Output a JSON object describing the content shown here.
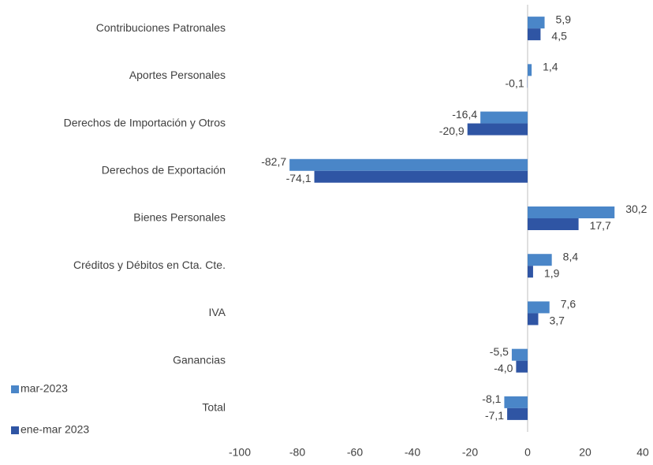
{
  "chart_data": {
    "type": "hbar",
    "categories": [
      "Contribuciones Patronales",
      "Aportes Personales",
      "Derechos de Importación y Otros",
      "Derechos de Exportación",
      "Bienes Personales",
      "Créditos y Débitos en Cta. Cte.",
      "IVA",
      "Ganancias",
      "Total"
    ],
    "series": [
      {
        "name": "mar-2023",
        "color": "#4a86c8",
        "values": [
          5.9,
          1.4,
          -16.4,
          -82.7,
          30.2,
          8.4,
          7.6,
          -5.5,
          -8.1
        ],
        "value_labels": [
          "5,9",
          "1,4",
          "-16,4",
          "-82,7",
          "30,2",
          "8,4",
          "7,6",
          "-5,5",
          "-8,1"
        ]
      },
      {
        "name": "ene-mar 2023",
        "color": "#2f55a4",
        "values": [
          4.5,
          -0.1,
          -20.9,
          -74.1,
          17.7,
          1.9,
          3.7,
          -4.0,
          -7.1
        ],
        "value_labels": [
          "4,5",
          "-0,1",
          "-20,9",
          "-74,1",
          "17,7",
          "1,9",
          "3,7",
          "-4,0",
          "-7,1"
        ]
      }
    ],
    "xlim": [
      -100,
      40
    ],
    "xticks": [
      -100,
      -80,
      -60,
      -40,
      -20,
      0,
      20,
      40
    ],
    "legend": "bottom-left"
  }
}
